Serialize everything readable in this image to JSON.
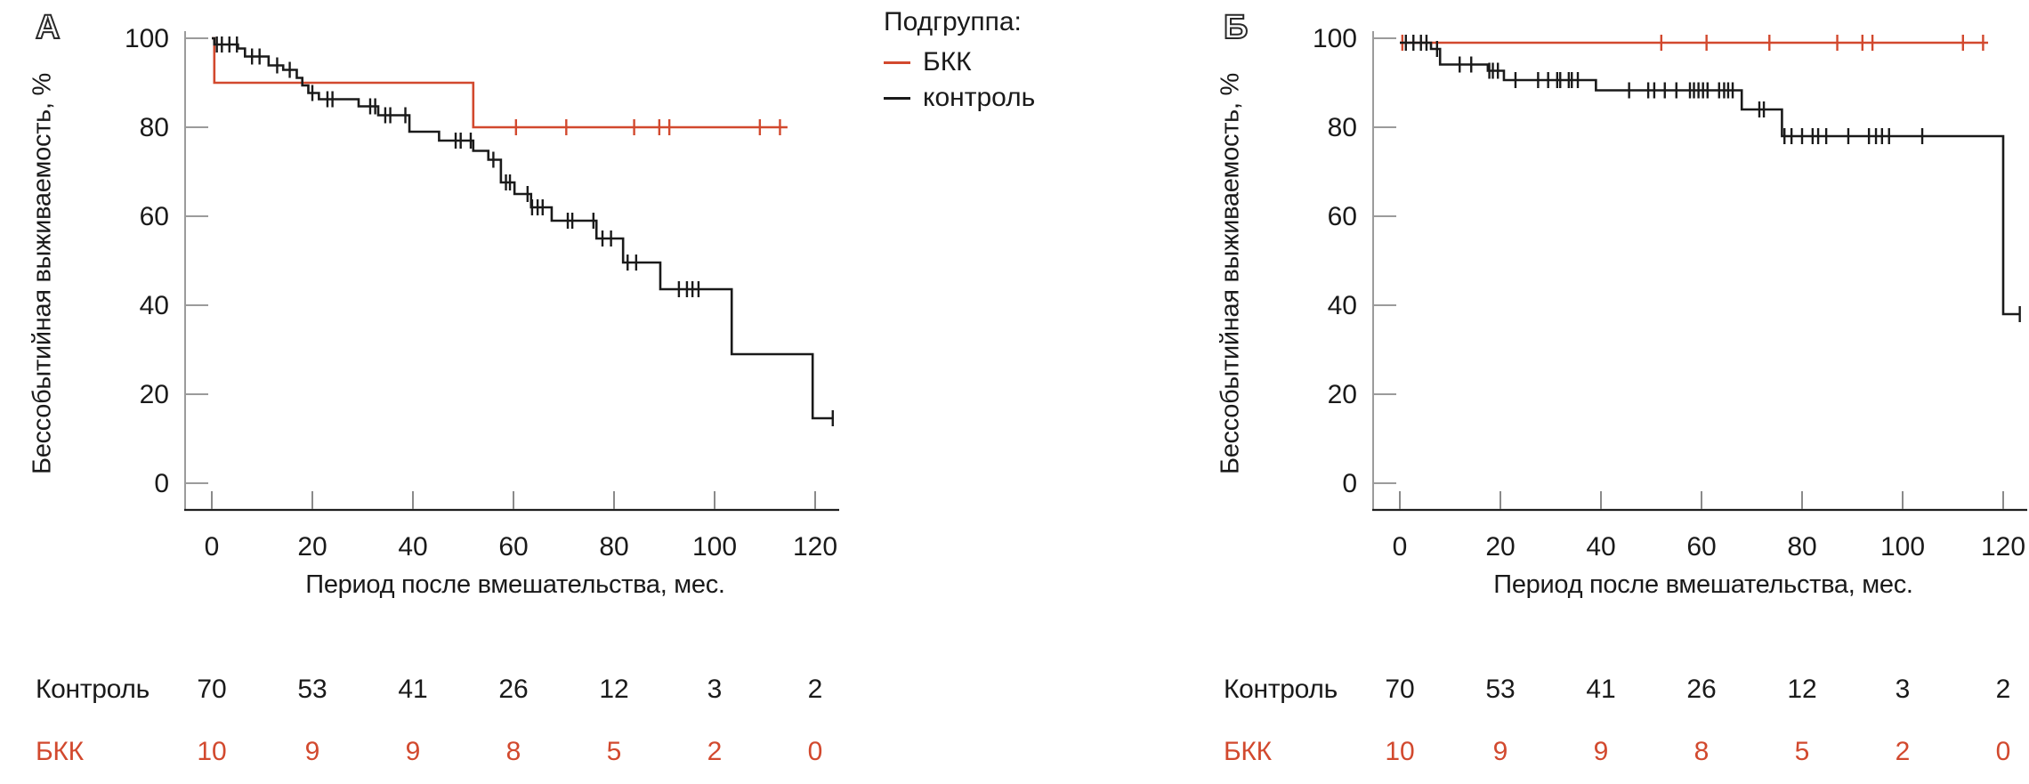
{
  "colors": {
    "bkk": "#d2492e",
    "control": "#1a1a1a",
    "axis_grey": "#9b9b9b",
    "tick_grey": "#8a8a8a",
    "axis_black": "#1f1f1f"
  },
  "legend": {
    "title": "Подгруппа:",
    "items": [
      {
        "label": "БКК",
        "color_key": "bkk"
      },
      {
        "label": "контроль",
        "color_key": "control"
      }
    ]
  },
  "axes": {
    "x_label": "Период после вмешательства, мес.",
    "y_label": "Бессобытийная выживаемость, %",
    "x_ticks": [
      0,
      20,
      40,
      60,
      80,
      100,
      120
    ],
    "y_ticks": [
      0,
      20,
      40,
      60,
      80,
      100
    ]
  },
  "risk_table": {
    "rows": [
      {
        "label": "Контроль",
        "color_key": "control",
        "values": [
          70,
          53,
          41,
          26,
          12,
          3,
          2
        ]
      },
      {
        "label": "БКК",
        "color_key": "bkk",
        "values": [
          10,
          9,
          9,
          8,
          5,
          2,
          0
        ]
      }
    ]
  },
  "chart_data": [
    {
      "panel": "А",
      "type": "line",
      "subtype": "kaplan-meier-step",
      "xlabel": "Период после вмешательства, мес.",
      "ylabel": "Бессобытийная выживаемость, %",
      "xlim": [
        0,
        120
      ],
      "ylim": [
        0,
        100
      ],
      "series": [
        {
          "name": "БКК",
          "color_key": "bkk",
          "steps": [
            [
              0,
              100
            ],
            [
              0.5,
              90
            ],
            [
              52,
              80
            ]
          ],
          "end": 114.5,
          "censors": [
            60.5,
            70.5,
            84,
            89,
            91,
            109,
            113
          ]
        },
        {
          "name": "контроль",
          "color_key": "control",
          "steps": [
            [
              0,
              100
            ],
            [
              0.5,
              98.6
            ],
            [
              5.2,
              97.7
            ],
            [
              6.6,
              95.9
            ],
            [
              11.3,
              93.9
            ],
            [
              14.2,
              92.9
            ],
            [
              16.9,
              91.1
            ],
            [
              18,
              89.4
            ],
            [
              19.2,
              87.7
            ],
            [
              21.3,
              86.3
            ],
            [
              29.2,
              84.7
            ],
            [
              33.1,
              82.7
            ],
            [
              39.3,
              79
            ],
            [
              45.2,
              77
            ],
            [
              52,
              74.7
            ],
            [
              55,
              72.7
            ],
            [
              57.5,
              67.6
            ],
            [
              60.2,
              65
            ],
            [
              63.5,
              62
            ],
            [
              67.6,
              59
            ],
            [
              76.5,
              55
            ],
            [
              81.8,
              49.6
            ],
            [
              89.2,
              43.6
            ],
            [
              103.4,
              29
            ],
            [
              119.5,
              14.6
            ]
          ],
          "end": 123.5,
          "censors": [
            1,
            2,
            3.5,
            5,
            8,
            9.5,
            13,
            15.5,
            20,
            23,
            24,
            31.5,
            32.5,
            34.5,
            35.5,
            38.5,
            48.5,
            49.5,
            51.5,
            56,
            58.5,
            59.3,
            62.8,
            63.7,
            64.8,
            65.8,
            70.8,
            71.7,
            75.9,
            77.7,
            79.4,
            82.7,
            84.4,
            92.9,
            94.5,
            95.6,
            96.8,
            123.5
          ]
        }
      ]
    },
    {
      "panel": "Б",
      "type": "line",
      "subtype": "kaplan-meier-step",
      "xlabel": "Период после вмешательства, мес.",
      "ylabel": "Бессобытийная выживаемость, %",
      "xlim": [
        0,
        120
      ],
      "ylim": [
        0,
        100
      ],
      "series": [
        {
          "name": "БКК",
          "color_key": "bkk",
          "steps": [
            [
              0,
              99
            ]
          ],
          "end": 117,
          "censors": [
            0.5,
            52,
            61,
            73.5,
            87,
            92,
            94,
            112,
            116
          ]
        },
        {
          "name": "контроль",
          "color_key": "control",
          "steps": [
            [
              0,
              99
            ],
            [
              6.2,
              97.6
            ],
            [
              8,
              94.1
            ],
            [
              17.5,
              92.7
            ],
            [
              20.7,
              90.6
            ],
            [
              39,
              88.3
            ],
            [
              68,
              84
            ],
            [
              76,
              78
            ],
            [
              120,
              38
            ]
          ],
          "end": 123.3,
          "censors": [
            1.2,
            2.7,
            4.2,
            5.3,
            7.4,
            11.9,
            14.2,
            17.8,
            18.5,
            19.5,
            23,
            27.5,
            29.5,
            31.3,
            31.9,
            33.6,
            34.2,
            35.4,
            45.6,
            49.4,
            50.6,
            52.7,
            55,
            57.7,
            58.5,
            59.4,
            60.3,
            61.2,
            63.5,
            64.5,
            65.3,
            66.2,
            71.5,
            72.4,
            76.5,
            77.9,
            80,
            82.1,
            83.2,
            84.8,
            89.2,
            93.3,
            94.7,
            95.9,
            97.3,
            103.9,
            123.3
          ]
        }
      ]
    }
  ]
}
